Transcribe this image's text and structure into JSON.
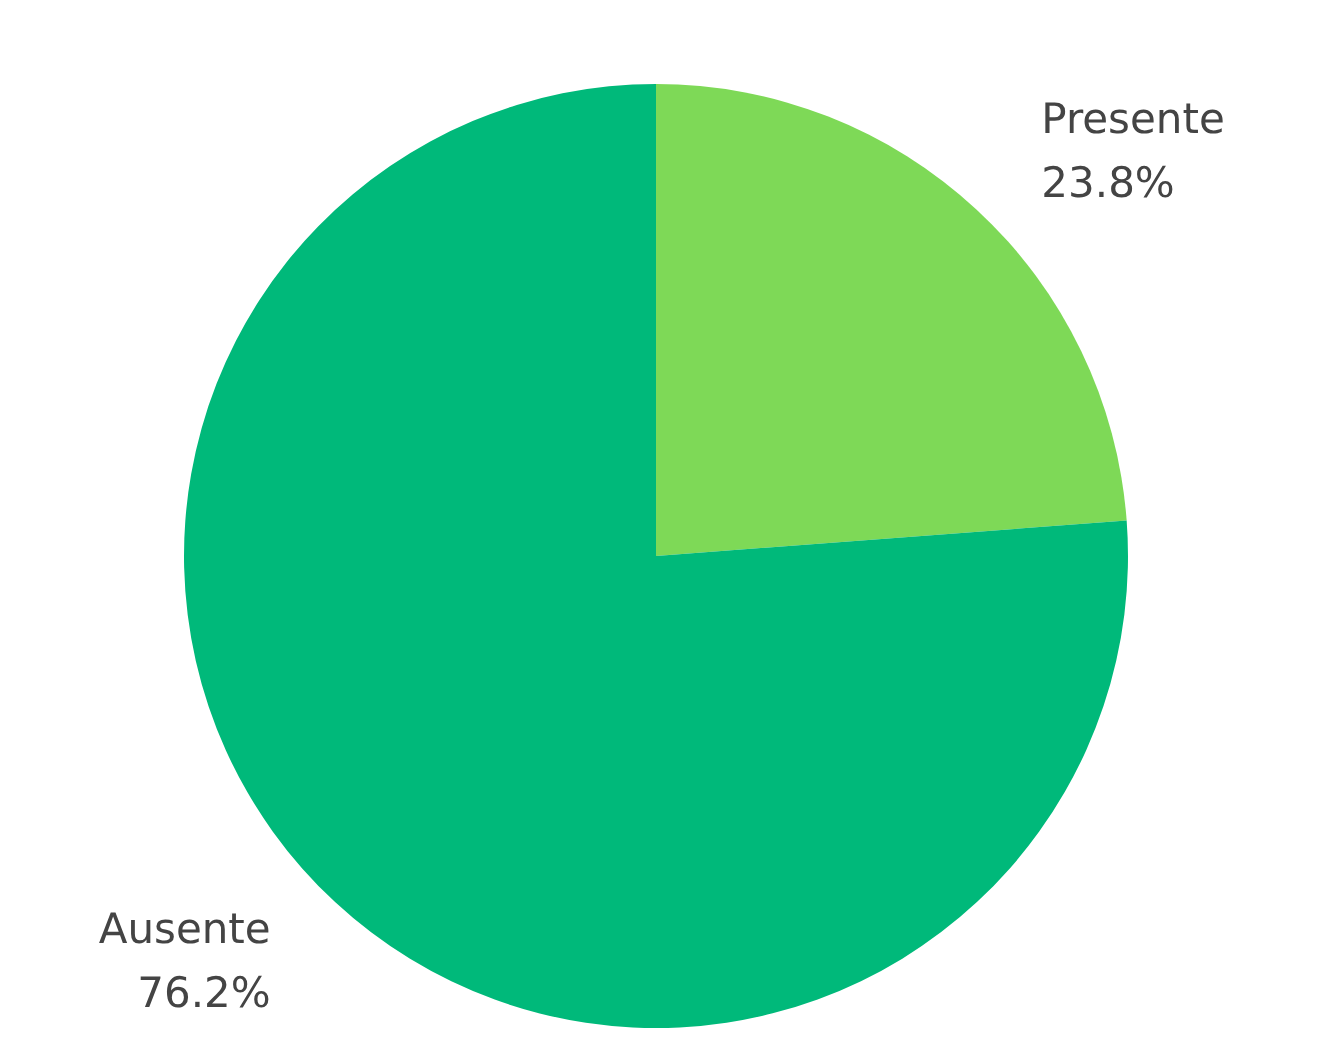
{
  "chart_data": {
    "type": "pie",
    "categories": [
      "Presente",
      "Ausente"
    ],
    "values": [
      23.8,
      76.2
    ],
    "colors": [
      "#7ed957",
      "#00b97a"
    ],
    "value_labels": [
      "23.8%",
      "76.2%"
    ],
    "legend": false
  }
}
